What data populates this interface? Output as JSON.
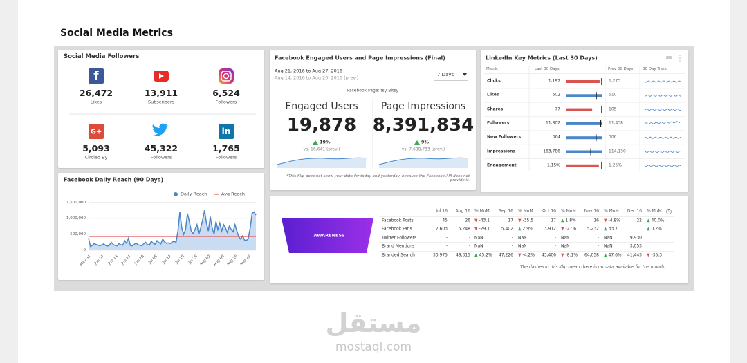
{
  "header": {
    "title": "Social Media Metrics"
  },
  "followers": {
    "title": "Social Media Followers",
    "items": [
      {
        "icon": "f",
        "value": "26,472",
        "label": "Likes"
      },
      {
        "value": "13,911",
        "label": "Subscribers"
      },
      {
        "value": "6,524",
        "label": "Followers"
      },
      {
        "icon": "G+",
        "value": "5,093",
        "label": "Circled By"
      },
      {
        "value": "45,322",
        "label": "Followers"
      },
      {
        "icon": "in",
        "value": "1,765",
        "label": "Followers"
      }
    ]
  },
  "facebook": {
    "title": "Facebook Engaged Users and Page Impressions (Final)",
    "date_range": "Aug 21, 2016 to Aug 27, 2016",
    "prev_range": "Aug 14, 2016 to Aug 20, 2016 (prev.)",
    "dropdown": "7 Days",
    "page": "Facebook Page:Itsy Bitsy",
    "metrics": [
      {
        "name": "Engaged Users",
        "value": "19,878",
        "change": "19%",
        "prev": "vs. 16,641 (prev.)"
      },
      {
        "name": "Page Impressions",
        "value": "8,391,834",
        "change": "9%",
        "prev": "vs. 7,688,733 (prev.)"
      }
    ],
    "note": "*This Klip does not show your data for today and yesterday, because the Facebook API does not provide it."
  },
  "linkedin": {
    "title": "LinkedIn Key Metrics (Last 30 Days)",
    "columns": [
      "Metric",
      "Last 30 Days",
      "Prev 30 Days",
      "30 Day Trend"
    ],
    "colors": {
      "up": "#4a86c8",
      "down": "#d9534f"
    },
    "rows": [
      {
        "name": "Clicks",
        "last": {
          "value": 1197,
          "label": "1,197"
        },
        "prev": {
          "value": 1273,
          "label": "1,273"
        }
      },
      {
        "name": "Likes",
        "last": 602,
        "prev": 510
      },
      {
        "name": "Shares",
        "last": 77,
        "prev": 105
      },
      {
        "name": "Followers",
        "last": {
          "value": 11802,
          "label": "11,802"
        },
        "prev": {
          "value": 11438,
          "label": "11,438"
        }
      },
      {
        "name": "New Followers",
        "last": 364,
        "prev": 306
      },
      {
        "name": "Impressions",
        "last": {
          "value": 163786,
          "label": "163,786"
        },
        "prev": {
          "value": 114130,
          "label": "114,130"
        }
      },
      {
        "name": "Engagement",
        "last": {
          "value": 1.15,
          "label": "1.15%"
        },
        "prev": {
          "value": 1.25,
          "label": "1.25%"
        }
      }
    ]
  },
  "awareness": {
    "label": "AWARENESS",
    "info": "?",
    "columns": [
      null,
      "Jul 16",
      "Aug 16",
      "% MoM",
      "Sep 16",
      "% MoM",
      "Oct 16",
      "% MoM",
      "Nov 16",
      "% MoM",
      "Dec 16",
      "% MoM"
    ],
    "rows": [
      [
        "Facebook Posts",
        "45",
        "26",
        "▼ -43.1",
        "17",
        "▼ -35.5",
        "17",
        "▲ 1.8%",
        "16",
        "▼ -4.8%",
        "22",
        "▲ 40.0%"
      ],
      [
        "Facebook Fans",
        "7,603",
        "5,248",
        "▼ -29.1",
        "5,402",
        "▲ 2.9%",
        "3,912",
        "▼ -27.6",
        "5,232",
        "▲ 33.7",
        null,
        "▲ 0.2%"
      ],
      [
        "Twitter Followers",
        "-",
        "-",
        "NaN",
        "-",
        "NaN",
        "-",
        "NaN",
        "-",
        "NaN",
        "9,930",
        null
      ],
      [
        "Brand Mentions",
        "-",
        "-",
        "NaN",
        "-",
        "NaN",
        "-",
        "NaN",
        "-",
        "NaN",
        "3,053",
        null
      ],
      [
        "Branded Search",
        "33,975",
        "49,315",
        "▲ 45.2%",
        "47,226",
        "▼ -4.2%",
        "43,406",
        "▼ -8.1%",
        "64,058",
        "▲ 47.6%",
        "41,443",
        "▼ -35.3"
      ]
    ],
    "note": "The dashes in this Klip mean there is no data available for the month."
  },
  "daily_reach": {
    "type": "line",
    "title": "Facebook Daily Reach (90 Days)",
    "categories": [
      "May 31",
      null,
      null,
      null,
      null,
      null,
      null,
      "Jun 07",
      null,
      null,
      null,
      null,
      null,
      null,
      "Jun 14",
      null,
      null,
      null,
      null,
      null,
      null,
      "Jun 21",
      null,
      null,
      null,
      null,
      null,
      null,
      "Jun 28",
      null,
      null,
      null,
      null,
      null,
      null,
      "Jul 05",
      null,
      null,
      null,
      null,
      null,
      null,
      "Jul 12",
      null,
      null,
      null,
      null,
      null,
      null,
      "Jul 19",
      null,
      null,
      null,
      null,
      null,
      null,
      "Jul 26",
      null,
      null,
      null,
      null,
      null,
      null,
      "Aug 02",
      null,
      null,
      null,
      null,
      null,
      null,
      "Aug 09",
      null,
      null,
      null,
      null,
      null,
      null,
      "Aug 16",
      null,
      null,
      null,
      null,
      null,
      null,
      "Aug 23",
      null,
      null,
      null,
      null
    ],
    "series": [
      {
        "name": "Daily Reach",
        "color": "#4a86c8",
        "values": [
          380000,
          120000,
          150000,
          210000,
          180000,
          160000,
          140000,
          170000,
          200000,
          150000,
          130000,
          160000,
          250000,
          180000,
          150000,
          140000,
          210000,
          170000,
          160000,
          300000,
          220000,
          380000,
          150000,
          140000,
          180000,
          230000,
          170000,
          160000,
          140000,
          200000,
          250000,
          180000,
          160000,
          280000,
          220000,
          190000,
          300000,
          240000,
          200000,
          350000,
          260000,
          220000,
          230000,
          210000,
          260000,
          280000,
          250000,
          600000,
          1200000,
          700000,
          500000,
          650000,
          1150000,
          900000,
          600000,
          520000,
          650000,
          800000,
          500000,
          700000,
          950000,
          1250000,
          850000,
          600000,
          1050000,
          700000,
          500000,
          900000,
          650000,
          850000,
          600000,
          800000,
          700000,
          550000,
          750000,
          650000,
          580000,
          800000,
          600000,
          420000,
          350000,
          450000,
          320000,
          300000,
          380000,
          700000,
          1150000,
          1200000,
          1100000
        ]
      },
      {
        "name": "Avg Reach",
        "color": "#e05555",
        "value": 430000
      }
    ],
    "ylim": [
      0,
      1600000
    ],
    "yticks": [
      0,
      {
        "value": 500000,
        "label": "500,000"
      },
      {
        "value": 1000000,
        "label": "1,000,000"
      },
      {
        "value": 1500000,
        "label": "1,500,000"
      }
    ],
    "grid": true,
    "area_color": "#c9dcf2",
    "legend": "top-right"
  },
  "watermark": {
    "arabic": "مستقل",
    "latin": "mostaql.com"
  }
}
